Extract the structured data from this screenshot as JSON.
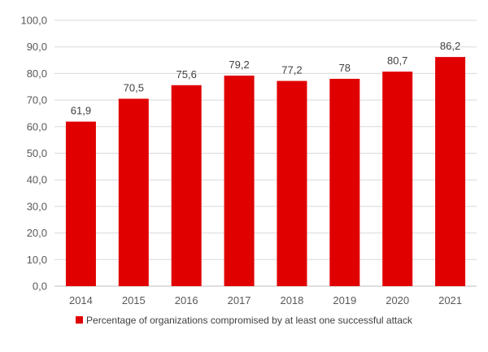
{
  "chart_data": {
    "type": "bar",
    "title": "",
    "xlabel": "",
    "ylabel": "",
    "categories": [
      "2014",
      "2015",
      "2016",
      "2017",
      "2018",
      "2019",
      "2020",
      "2021"
    ],
    "series": [
      {
        "name": "Percentage of organizations compromised by at least one successful attack",
        "values": [
          61.9,
          70.5,
          75.6,
          79.2,
          77.2,
          78,
          80.7,
          86.2
        ],
        "labels": [
          "61,9",
          "70,5",
          "75,6",
          "79,2",
          "77,2",
          "78",
          "80,7",
          "86,2"
        ],
        "color": "#e00000"
      }
    ],
    "ylim": [
      0,
      100
    ],
    "yticks": [
      0,
      10,
      20,
      30,
      40,
      50,
      60,
      70,
      80,
      90,
      100
    ],
    "ytick_labels": [
      "0,0",
      "10,0",
      "20,0",
      "30,0",
      "40,0",
      "50,0",
      "60,0",
      "70,0",
      "80,0",
      "90,0",
      "100,0"
    ],
    "grid": true,
    "legend_position": "bottom",
    "gridline_color": "#d9d9d9",
    "axis_color": "#bfbfbf"
  }
}
